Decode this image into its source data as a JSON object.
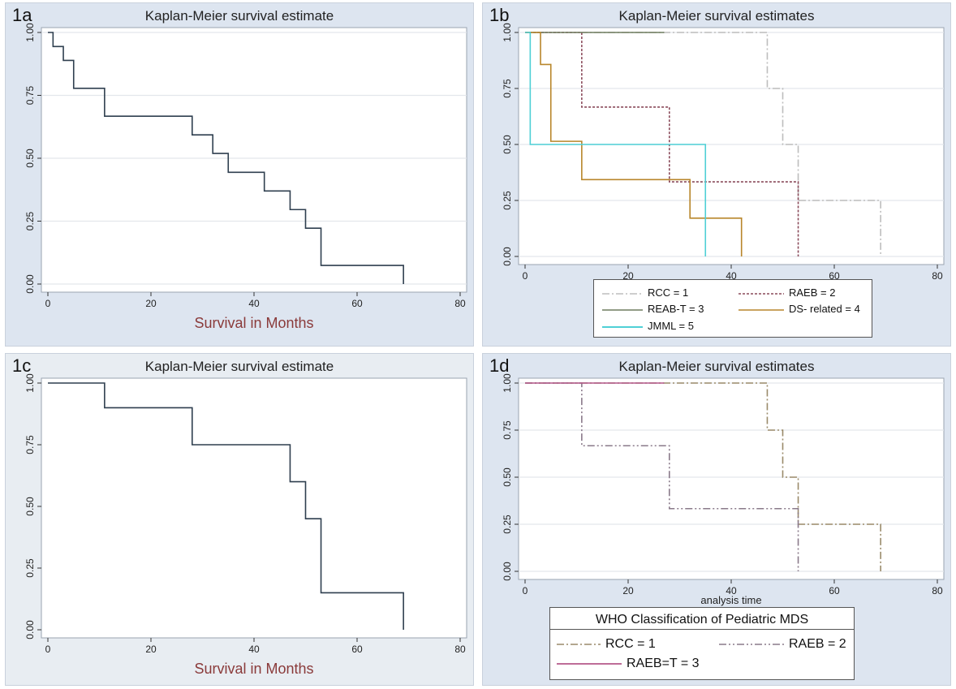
{
  "figure": {
    "panels": [
      {
        "label": "1a",
        "title": "Kaplan-Meier survival estimate",
        "xlabel": "Survival in Months",
        "bg": "#dde5f0"
      },
      {
        "label": "1b",
        "title": "Kaplan-Meier survival estimates",
        "xlabel": "",
        "bg": "#dde5f0",
        "legend": {
          "title": "",
          "items": [
            "RCC = 1",
            "RAEB = 2",
            "REAB-T = 3",
            "DS- related = 4",
            "JMML = 5"
          ]
        }
      },
      {
        "label": "1c",
        "title": "Kaplan-Meier survival estimate",
        "xlabel": "Survival in Months",
        "bg": "#e8edf2"
      },
      {
        "label": "1d",
        "title": "Kaplan-Meier survival estimates",
        "xlabel": "analysis time",
        "bg": "#dde5f0",
        "legend": {
          "title": "WHO Classification of Pediatric MDS",
          "items": [
            "RCC = 1",
            "RAEB = 2",
            "RAEB=T = 3"
          ]
        }
      }
    ]
  },
  "chart_data": [
    {
      "type": "line",
      "step": true,
      "title": "Kaplan-Meier survival estimate",
      "xlabel": "Survival in Months",
      "ylabel": "",
      "xlim": [
        0,
        80
      ],
      "ylim": [
        0,
        1
      ],
      "xticks": [
        "0",
        "20",
        "40",
        "60",
        "80"
      ],
      "yticks": [
        "0.00",
        "0.25",
        "0.50",
        "0.75",
        "1.00"
      ],
      "grid": true,
      "series": [
        {
          "name": "",
          "color": "#2f3f4f",
          "dash": "",
          "x": [
            0,
            1,
            3,
            5,
            11,
            28,
            32,
            35,
            42,
            47,
            50,
            53,
            69
          ],
          "y": [
            1.0,
            0.944,
            0.889,
            0.778,
            0.667,
            0.593,
            0.519,
            0.444,
            0.37,
            0.296,
            0.222,
            0.074,
            0.0
          ]
        }
      ]
    },
    {
      "type": "line",
      "step": true,
      "title": "Kaplan-Meier survival estimates",
      "xlabel": "",
      "ylabel": "",
      "xlim": [
        0,
        80
      ],
      "ylim": [
        0,
        1
      ],
      "xticks": [
        "0",
        "20",
        "40",
        "60",
        "80"
      ],
      "yticks": [
        "0.00",
        "0.25",
        "0.50",
        "0.75",
        "1.00"
      ],
      "grid": true,
      "legend": "bottom",
      "series": [
        {
          "name": "RCC = 1",
          "color": "#bdbdbd",
          "dash": "9,3,2,3",
          "x": [
            0,
            47,
            50,
            53,
            69
          ],
          "y": [
            1.0,
            0.75,
            0.5,
            0.25,
            0.0
          ]
        },
        {
          "name": "RAEB = 2",
          "color": "#8a4a5a",
          "dash": "3,2",
          "x": [
            0,
            11,
            28,
            53
          ],
          "y": [
            1.0,
            0.667,
            0.333,
            0.0
          ]
        },
        {
          "name": "REAB-T = 3",
          "color": "#6f7d5f",
          "dash": "",
          "x": [
            0,
            27
          ],
          "y": [
            1.0,
            1.0
          ]
        },
        {
          "name": "DS- related = 4",
          "color": "#b8862b",
          "dash": "",
          "x": [
            0,
            3,
            5,
            11,
            32,
            42
          ],
          "y": [
            1.0,
            0.857,
            0.514,
            0.343,
            0.171,
            0.0
          ]
        },
        {
          "name": "JMML = 5",
          "color": "#4fd0d6",
          "dash": "",
          "x": [
            0,
            1,
            35
          ],
          "y": [
            1.0,
            0.5,
            0.0
          ]
        }
      ]
    },
    {
      "type": "line",
      "step": true,
      "title": "Kaplan-Meier survival estimate",
      "xlabel": "Survival in Months",
      "ylabel": "",
      "xlim": [
        0,
        80
      ],
      "ylim": [
        0,
        1
      ],
      "xticks": [
        "0",
        "20",
        "40",
        "60",
        "80"
      ],
      "yticks": [
        "0.00",
        "0.25",
        "0.50",
        "0.75",
        "1.00"
      ],
      "grid": false,
      "series": [
        {
          "name": "",
          "color": "#2f3f4f",
          "dash": "",
          "x": [
            0,
            11,
            28,
            47,
            50,
            53,
            69
          ],
          "y": [
            1.0,
            0.9,
            0.75,
            0.6,
            0.45,
            0.15,
            0.0
          ]
        }
      ]
    },
    {
      "type": "line",
      "step": true,
      "title": "Kaplan-Meier survival estimates",
      "xlabel": "analysis time",
      "ylabel": "",
      "xlim": [
        0,
        80
      ],
      "ylim": [
        0,
        1
      ],
      "xticks": [
        "0",
        "20",
        "40",
        "60",
        "80"
      ],
      "yticks": [
        "0.00",
        "0.25",
        "0.50",
        "0.75",
        "1.00"
      ],
      "grid": true,
      "legend": "bottom",
      "legend_title": "WHO Classification of Pediatric MDS",
      "series": [
        {
          "name": "RCC = 1",
          "color": "#9a8a6a",
          "dash": "9,3,2,3",
          "x": [
            0,
            47,
            50,
            53,
            69
          ],
          "y": [
            1.0,
            0.75,
            0.5,
            0.25,
            0.0
          ]
        },
        {
          "name": "RAEB = 2",
          "color": "#8a7a8a",
          "dash": "9,3,2,3,2,3",
          "x": [
            0,
            11,
            28,
            53
          ],
          "y": [
            1.0,
            0.667,
            0.333,
            0.0
          ]
        },
        {
          "name": "RAEB=T = 3",
          "color": "#b4588a",
          "dash": "",
          "x": [
            0,
            27
          ],
          "y": [
            1.0,
            1.0
          ]
        }
      ]
    }
  ]
}
